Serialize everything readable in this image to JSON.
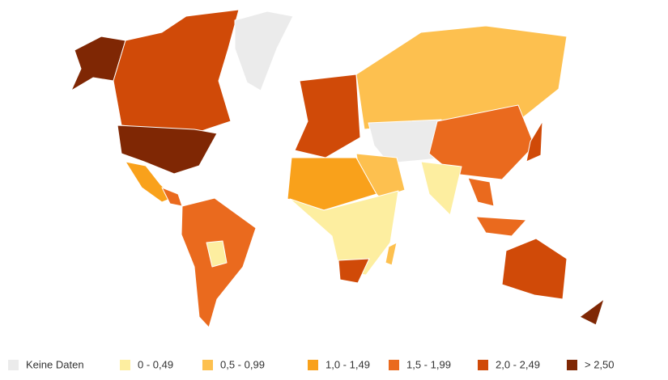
{
  "legend": [
    {
      "label": "Keine Daten",
      "color": "#ebebeb"
    },
    {
      "label": "0 - 0,49",
      "color": "#fdeea0"
    },
    {
      "label": "0,5 - 0,99",
      "color": "#fdc04f"
    },
    {
      "label": "1,0 - 1,49",
      "color": "#f9a11b"
    },
    {
      "label": "1,5 - 1,99",
      "color": "#ea6a1e"
    },
    {
      "label": "2,0 - 2,49",
      "color": "#d04a08"
    },
    {
      "label": "> 2,50",
      "color": "#7f2704"
    }
  ]
}
